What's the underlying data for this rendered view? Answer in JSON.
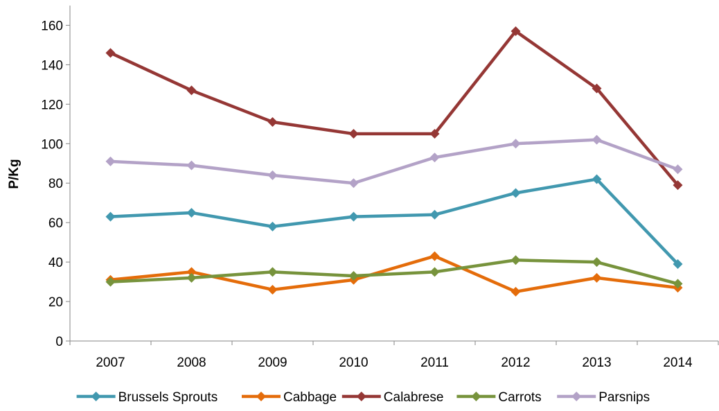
{
  "chart_data": {
    "type": "line",
    "title": "",
    "xlabel": "",
    "ylabel": "P/Kg",
    "categories": [
      "2007",
      "2008",
      "2009",
      "2010",
      "2011",
      "2012",
      "2013",
      "2014"
    ],
    "ylim": [
      0,
      170
    ],
    "yticks": [
      0,
      20,
      40,
      60,
      80,
      100,
      120,
      140,
      160
    ],
    "grid": false,
    "legend_position": "bottom",
    "marker": "diamond",
    "series": [
      {
        "name": "Brussels Sprouts",
        "color": "#4198AF",
        "values": [
          63,
          65,
          58,
          63,
          64,
          75,
          82,
          39
        ]
      },
      {
        "name": "Cabbage",
        "color": "#E46C0A",
        "values": [
          31,
          35,
          26,
          31,
          43,
          25,
          32,
          27
        ]
      },
      {
        "name": "Calabrese",
        "color": "#953735",
        "values": [
          146,
          127,
          111,
          105,
          105,
          157,
          128,
          79
        ]
      },
      {
        "name": "Carrots",
        "color": "#77933C",
        "values": [
          30,
          32,
          35,
          33,
          35,
          41,
          40,
          29
        ]
      },
      {
        "name": "Parsnips",
        "color": "#B3A2C7",
        "values": [
          91,
          89,
          84,
          80,
          93,
          100,
          102,
          87
        ]
      }
    ]
  }
}
